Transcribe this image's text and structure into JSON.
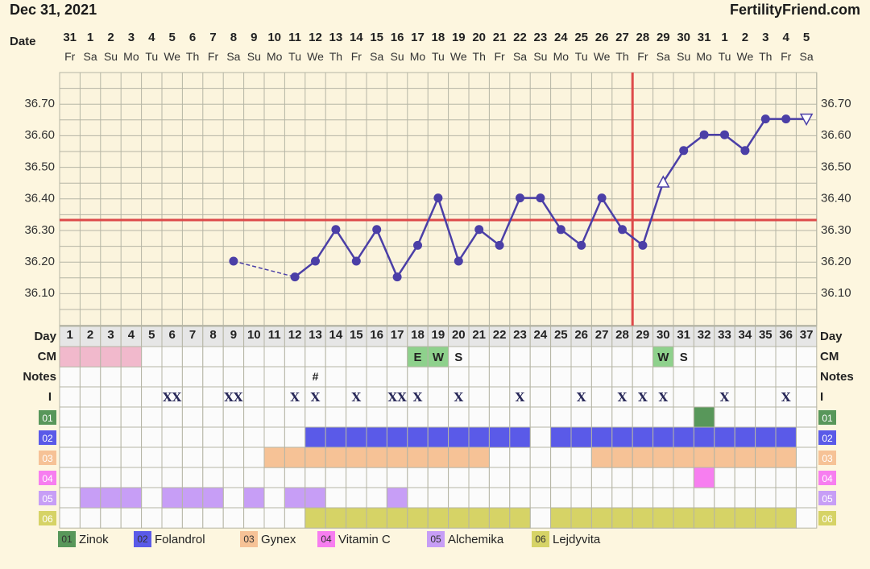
{
  "header": {
    "date": "Dec 31, 2021",
    "site": "FertilityFriend.com"
  },
  "row_labels": {
    "date": "Date",
    "day": "Day",
    "cm": "CM",
    "notes": "Notes",
    "intercourse": "I"
  },
  "columns": {
    "dates": [
      "31",
      "1",
      "2",
      "3",
      "4",
      "5",
      "6",
      "7",
      "8",
      "9",
      "10",
      "11",
      "12",
      "13",
      "14",
      "15",
      "16",
      "17",
      "18",
      "19",
      "20",
      "21",
      "22",
      "23",
      "24",
      "25",
      "26",
      "27",
      "28",
      "29",
      "30",
      "31",
      "1",
      "2",
      "3",
      "4",
      "5"
    ],
    "weekdays": [
      "Fr",
      "Sa",
      "Su",
      "Mo",
      "Tu",
      "We",
      "Th",
      "Fr",
      "Sa",
      "Su",
      "Mo",
      "Tu",
      "We",
      "Th",
      "Fr",
      "Sa",
      "Su",
      "Mo",
      "Tu",
      "We",
      "Th",
      "Fr",
      "Sa",
      "Su",
      "Mo",
      "Tu",
      "We",
      "Th",
      "Fr",
      "Sa",
      "Su",
      "Mo",
      "Tu",
      "We",
      "Th",
      "Fr",
      "Sa"
    ],
    "days": [
      "1",
      "2",
      "3",
      "4",
      "5",
      "6",
      "7",
      "8",
      "9",
      "10",
      "11",
      "12",
      "13",
      "14",
      "15",
      "16",
      "17",
      "18",
      "19",
      "20",
      "21",
      "22",
      "23",
      "24",
      "25",
      "26",
      "27",
      "28",
      "29",
      "30",
      "31",
      "32",
      "33",
      "34",
      "35",
      "36",
      "37"
    ]
  },
  "chart_data": {
    "type": "line",
    "xlabel": "Day",
    "ylim": [
      36.0,
      36.8
    ],
    "y_ticks": [
      "36.10",
      "36.20",
      "36.30",
      "36.40",
      "36.50",
      "36.60",
      "36.70"
    ],
    "coverline": 36.33,
    "ovulation_day": 28,
    "series": [
      {
        "points": [
          {
            "day": 9,
            "temp": 36.2
          },
          {
            "day": 12,
            "temp": 36.15
          },
          {
            "day": 13,
            "temp": 36.2
          },
          {
            "day": 14,
            "temp": 36.3
          },
          {
            "day": 15,
            "temp": 36.2
          },
          {
            "day": 16,
            "temp": 36.3
          },
          {
            "day": 17,
            "temp": 36.15
          },
          {
            "day": 18,
            "temp": 36.25
          },
          {
            "day": 19,
            "temp": 36.4
          },
          {
            "day": 20,
            "temp": 36.2
          },
          {
            "day": 21,
            "temp": 36.3
          },
          {
            "day": 22,
            "temp": 36.25
          },
          {
            "day": 23,
            "temp": 36.4
          },
          {
            "day": 24,
            "temp": 36.4
          },
          {
            "day": 25,
            "temp": 36.3
          },
          {
            "day": 26,
            "temp": 36.25
          },
          {
            "day": 27,
            "temp": 36.4
          },
          {
            "day": 28,
            "temp": 36.3
          },
          {
            "day": 29,
            "temp": 36.25
          },
          {
            "day": 30,
            "temp": 36.45,
            "marker": "open-triangle-up"
          },
          {
            "day": 31,
            "temp": 36.55
          },
          {
            "day": 32,
            "temp": 36.6
          },
          {
            "day": 33,
            "temp": 36.6
          },
          {
            "day": 34,
            "temp": 36.55
          },
          {
            "day": 35,
            "temp": 36.65
          },
          {
            "day": 36,
            "temp": 36.65
          },
          {
            "day": 37,
            "temp": 36.65,
            "marker": "open-triangle-down"
          }
        ],
        "dashed_segments": [
          [
            9,
            12
          ]
        ]
      }
    ],
    "cm": [
      {
        "day": 18,
        "value": "E"
      },
      {
        "day": 19,
        "value": "W"
      },
      {
        "day": 20,
        "value": "S"
      },
      {
        "day": 30,
        "value": "W"
      },
      {
        "day": 31,
        "value": "S"
      }
    ],
    "cm_period_days": [
      1,
      2,
      3,
      4
    ],
    "notes": [
      {
        "day": 13,
        "value": "#"
      }
    ],
    "intercourse": [
      {
        "day": 6,
        "value": "XX"
      },
      {
        "day": 9,
        "value": "XX"
      },
      {
        "day": 12,
        "value": "X"
      },
      {
        "day": 13,
        "value": "X"
      },
      {
        "day": 15,
        "value": "X"
      },
      {
        "day": 17,
        "value": "XX"
      },
      {
        "day": 18,
        "value": "X"
      },
      {
        "day": 20,
        "value": "X"
      },
      {
        "day": 23,
        "value": "X"
      },
      {
        "day": 26,
        "value": "X"
      },
      {
        "day": 28,
        "value": "X"
      },
      {
        "day": 29,
        "value": "X"
      },
      {
        "day": 30,
        "value": "X"
      },
      {
        "day": 33,
        "value": "X"
      },
      {
        "day": 36,
        "value": "X"
      }
    ],
    "medications": [
      {
        "code": "01",
        "name": "Zinok",
        "color": "#58975a",
        "days": [
          32
        ]
      },
      {
        "code": "02",
        "name": "Folandrol",
        "color": "#5a5ae8",
        "days": [
          13,
          14,
          15,
          16,
          17,
          18,
          19,
          20,
          21,
          22,
          23,
          25,
          26,
          27,
          28,
          29,
          30,
          31,
          32,
          33,
          34,
          35,
          36
        ]
      },
      {
        "code": "03",
        "name": "Gynex",
        "color": "#f6c296",
        "days": [
          11,
          12,
          13,
          14,
          15,
          16,
          17,
          18,
          19,
          20,
          21,
          27,
          28,
          29,
          30,
          31,
          32,
          33,
          34,
          35,
          36
        ]
      },
      {
        "code": "04",
        "name": "Vitamin C",
        "color": "#f77ef0",
        "days": [
          32
        ]
      },
      {
        "code": "05",
        "name": "Alchemika",
        "color": "#c79ef6",
        "days": [
          2,
          3,
          4,
          6,
          7,
          8,
          10,
          12,
          13,
          17
        ]
      },
      {
        "code": "06",
        "name": "Lejdyvita",
        "color": "#d6d366",
        "days": [
          13,
          14,
          15,
          16,
          17,
          18,
          19,
          20,
          21,
          22,
          23,
          25,
          26,
          27,
          28,
          29,
          30,
          31,
          32,
          33,
          34,
          35,
          36
        ]
      }
    ]
  },
  "colors": {
    "line": "#4b3fa7",
    "coverline": "#dd4a4a",
    "grid": "#b5b5a5",
    "cm_period": "#f1b9cc",
    "cm_fertile": "#8ed18c"
  }
}
